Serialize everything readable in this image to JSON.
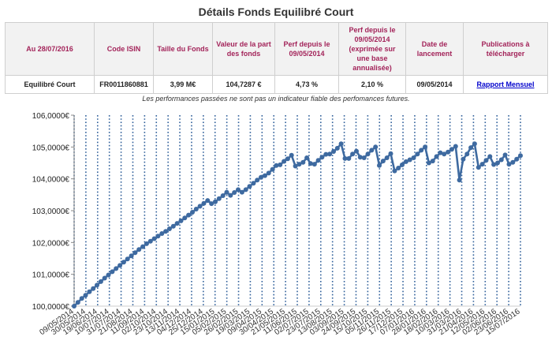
{
  "page": {
    "title": "Détails Fonds Equilibré Court",
    "disclaimer": "Les performances passées ne sont pas un indicateur fiable des perfomances futures."
  },
  "table": {
    "headers": [
      "Au 28/07/2016",
      "Code ISIN",
      "Taille du Fonds",
      "Valeur de la part des fonds",
      "Perf depuis le 09/05/2014",
      "Perf depuis le 09/05/2014 (exprimée sur une base annualisée)",
      "Date de lancement",
      "Publications à télécharger"
    ],
    "row": [
      "Equilibré Court",
      "FR0011860881",
      "3,99 M€",
      "104,7287 €",
      "4,73 %",
      "2,10 %",
      "09/05/2014"
    ],
    "link_label": "Rapport Mensuel"
  },
  "colors": {
    "line": "#3e6aa0",
    "marker": "#3e6aa0",
    "gridline": "#2f5f9a",
    "header_text": "#a3245a",
    "link": "#0000cc"
  },
  "chart_data": {
    "type": "line",
    "y_labels": [
      "100,0000€",
      "101,0000€",
      "102,0000€",
      "103,0000€",
      "104,0000€",
      "105,0000€",
      "106,0000€"
    ],
    "ylim": [
      100,
      106
    ],
    "x_labels": [
      "09/05/2014",
      "30/05/2014",
      "19/06/2014",
      "10/07/2014",
      "31/07/2014",
      "21/08/2014",
      "11/09/2014",
      "02/10/2014",
      "23/10/2014",
      "13/11/2014",
      "04/12/2014",
      "25/12/2014",
      "15/01/2015",
      "05/02/2015",
      "26/02/2015",
      "19/03/2015",
      "09/04/2015",
      "30/04/2015",
      "21/05/2015",
      "11/06/2015",
      "02/07/2015",
      "23/07/2015",
      "13/08/2015",
      "03/09/2015",
      "24/09/2015",
      "15/10/2015",
      "05/11/2015",
      "26/11/2015",
      "17/12/2015",
      "07/01/2016",
      "28/01/2016",
      "18/02/2016",
      "10/03/2016",
      "31/03/2016",
      "21/04/2016",
      "12/05/2016",
      "02/06/2016",
      "23/06/2016",
      "15/07/2016"
    ],
    "grid_x_dotted": true,
    "values": [
      100.0,
      100.12,
      100.24,
      100.34,
      100.45,
      100.55,
      100.66,
      100.77,
      100.88,
      100.98,
      101.08,
      101.18,
      101.28,
      101.38,
      101.48,
      101.58,
      101.68,
      101.78,
      101.87,
      101.96,
      102.04,
      102.12,
      102.2,
      102.28,
      102.35,
      102.43,
      102.51,
      102.6,
      102.68,
      102.77,
      102.86,
      102.95,
      103.05,
      103.14,
      103.23,
      103.32,
      103.22,
      103.28,
      103.38,
      103.47,
      103.58,
      103.48,
      103.57,
      103.66,
      103.58,
      103.66,
      103.76,
      103.86,
      103.96,
      104.05,
      104.1,
      104.18,
      104.3,
      104.42,
      104.44,
      104.55,
      104.63,
      104.74,
      104.4,
      104.46,
      104.52,
      104.66,
      104.48,
      104.46,
      104.58,
      104.68,
      104.77,
      104.78,
      104.86,
      104.96,
      105.1,
      104.64,
      104.64,
      104.78,
      104.87,
      104.68,
      104.66,
      104.78,
      104.9,
      105.0,
      104.42,
      104.56,
      104.66,
      104.79,
      104.25,
      104.34,
      104.44,
      104.54,
      104.6,
      104.66,
      104.78,
      104.9,
      105.0,
      104.5,
      104.56,
      104.7,
      104.82,
      104.78,
      104.84,
      104.93,
      105.02,
      103.96,
      104.62,
      104.78,
      104.98,
      105.1,
      104.36,
      104.46,
      104.58,
      104.7,
      104.45,
      104.5,
      104.6,
      104.75,
      104.46,
      104.52,
      104.62,
      104.73
    ]
  }
}
